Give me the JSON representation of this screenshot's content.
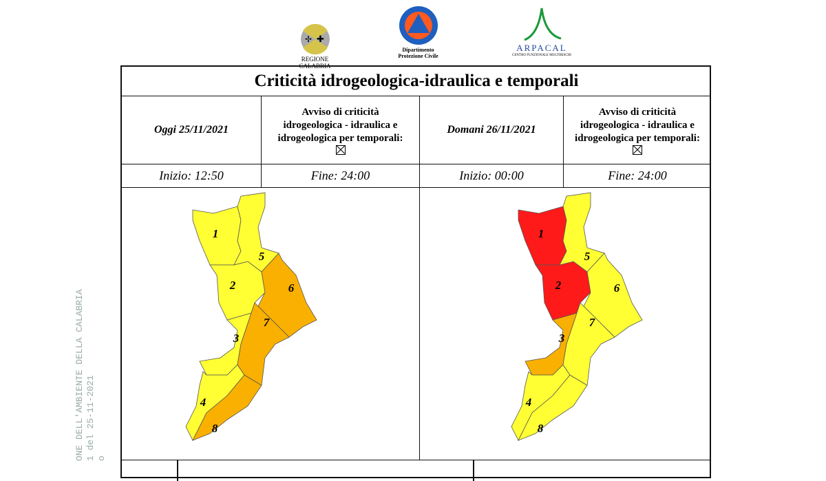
{
  "logos": {
    "regione": "REGIONE CALABRIA",
    "protezione_line1": "Dipartimento",
    "protezione_line2": "Protezione Civile",
    "arpacal": "ARPACAL",
    "arpacal_sub": "CENTRO FUNZIONALE MULTIRISCHI"
  },
  "title": "Criticità idrogeologica-idraulica e temporali",
  "today": {
    "label": "Oggi 25/11/2021",
    "avviso": [
      "Avviso di criticità",
      "idrogeologica - idraulica e",
      "idrogeologica per temporali:"
    ],
    "start": "Inizio: 12:50",
    "end": "Fine: 24:00",
    "zones": {
      "1": "yellow",
      "2": "yellow",
      "3": "yellow",
      "4": "yellow",
      "5": "yellow",
      "6": "orange",
      "7": "orange",
      "8": "orange"
    }
  },
  "tomorrow": {
    "label": "Domani 26/11/2021",
    "avviso": [
      "Avviso di criticità",
      "idrogeologica - idraulica e",
      "idrogeologica per temporali:"
    ],
    "start": "Inizio: 00:00",
    "end": "Fine: 24:00",
    "zones": {
      "1": "red",
      "2": "red",
      "3": "orange",
      "4": "yellow",
      "5": "yellow",
      "6": "yellow",
      "7": "yellow",
      "8": "yellow"
    }
  },
  "colors": {
    "yellow": "#ffff33",
    "orange": "#f9b000",
    "red": "#ff1a1a"
  },
  "watermark": [
    "ONE DELL'AMBIENTE DELLA CALABRIA",
    "1 del 25-11-2021",
    "o"
  ]
}
